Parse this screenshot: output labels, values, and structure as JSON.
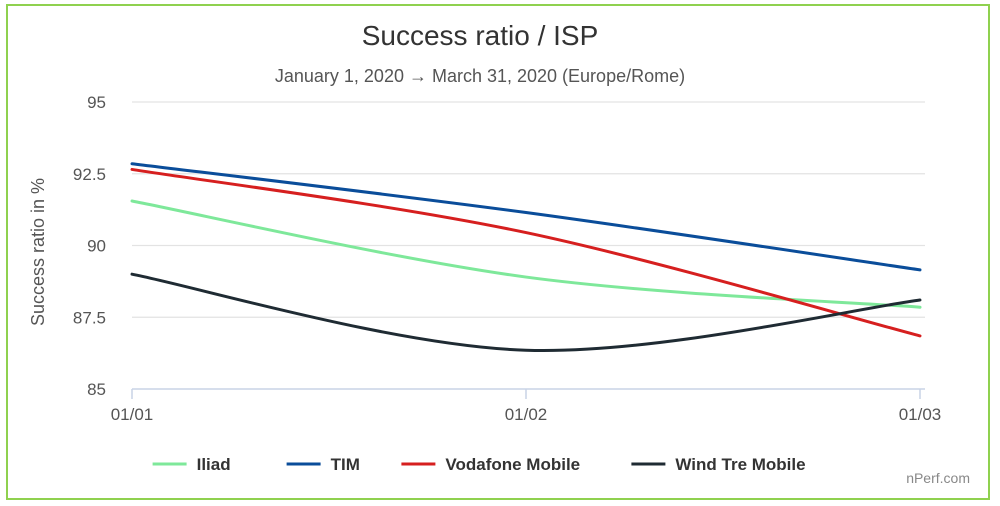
{
  "chart_data": {
    "type": "line",
    "title": "Success ratio / ISP",
    "subtitle": "January 1, 2020 → March 31, 2020 (Europe/Rome)",
    "xlabel": "",
    "ylabel": "Success ratio in %",
    "ylim": [
      85,
      95
    ],
    "yticks": [
      85,
      87.5,
      90,
      92.5,
      95
    ],
    "ytick_labels": [
      "85",
      "87.5",
      "90",
      "92.5",
      "95"
    ],
    "categories": [
      "01/01",
      "01/02",
      "01/03"
    ],
    "grid": true,
    "legend_position": "bottom",
    "series": [
      {
        "name": "Iliad",
        "color": "#7ee89a",
        "values": [
          91.55,
          88.9,
          87.85
        ]
      },
      {
        "name": "TIM",
        "color": "#0a4d9a",
        "values": [
          92.85,
          91.15,
          89.15
        ]
      },
      {
        "name": "Vodafone Mobile",
        "color": "#d61f1f",
        "values": [
          92.65,
          90.45,
          86.85
        ]
      },
      {
        "name": "Wind Tre Mobile",
        "color": "#1f2b33",
        "values": [
          89.0,
          86.35,
          88.1
        ]
      }
    ],
    "credit": "nPerf.com"
  }
}
